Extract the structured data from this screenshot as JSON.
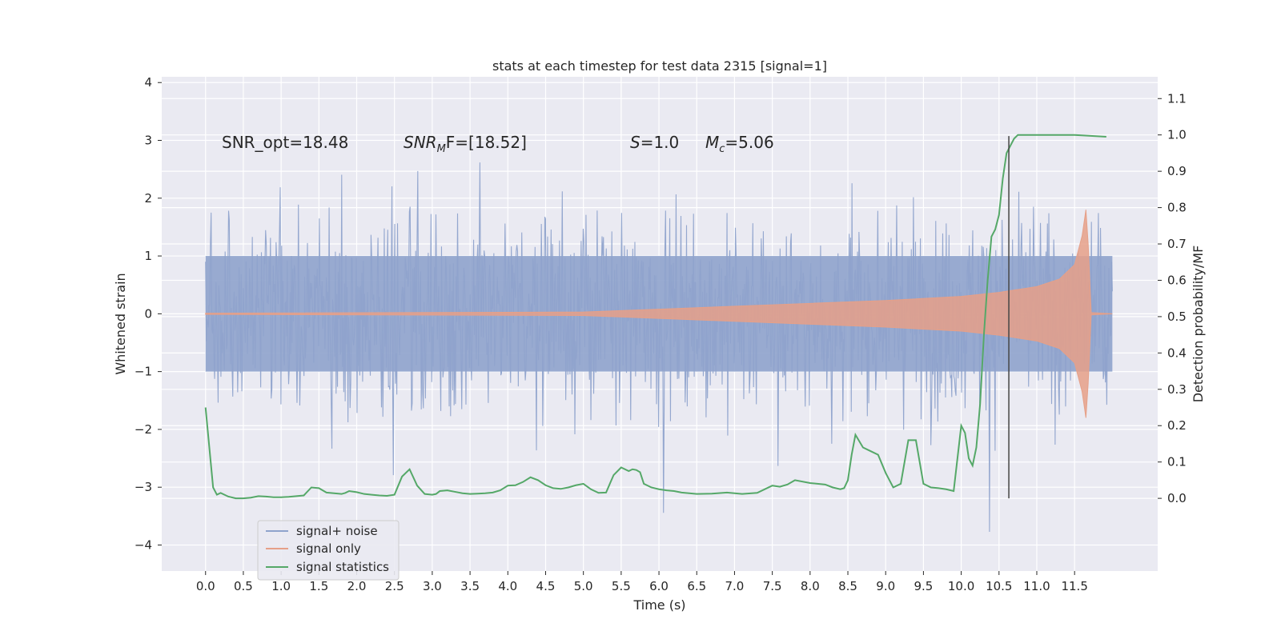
{
  "chart_data": {
    "type": "line",
    "title": "stats at each timestep for test data 2315 [signal=1]",
    "xlabel": "Time (s)",
    "ylabel": "Whitened strain",
    "y2label": "Detection probability/MF",
    "xlim": [
      -0.58,
      12.6
    ],
    "ylim": [
      -4.45,
      4.1
    ],
    "y2lim": [
      -0.2,
      1.16
    ],
    "x_ticks": [
      0.0,
      0.5,
      1.0,
      1.5,
      2.0,
      2.5,
      3.0,
      3.5,
      4.0,
      4.5,
      5.0,
      5.5,
      6.0,
      6.5,
      7.0,
      7.5,
      8.0,
      8.5,
      9.0,
      9.5,
      10.0,
      10.5,
      11.0,
      11.5
    ],
    "x_tick_labels": [
      "0.0",
      "0.5",
      "1.0",
      "1.5",
      "2.0",
      "2.5",
      "3.0",
      "3.5",
      "4.0",
      "4.5",
      "5.0",
      "5.5",
      "6.0",
      "6.5",
      "7.0",
      "7.5",
      "8.0",
      "8.5",
      "9.0",
      "9.5",
      "10.0",
      "10.5",
      "11.0",
      "11.5"
    ],
    "y_ticks": [
      4,
      3,
      2,
      1,
      0,
      -1,
      -2,
      -3,
      -4
    ],
    "y_tick_labels": [
      "4",
      "3",
      "2",
      "1",
      "0",
      "−1",
      "−2",
      "−3",
      "−4"
    ],
    "y2_ticks": [
      1.1,
      1.0,
      0.9,
      0.8,
      0.7,
      0.6,
      0.5,
      0.4,
      0.3,
      0.2,
      0.1,
      0.0
    ],
    "y2_tick_labels": [
      "1.1",
      "1.0",
      "0.9",
      "0.8",
      "0.7",
      "0.6",
      "0.5",
      "0.4",
      "0.3",
      "0.2",
      "0.1",
      "0.0"
    ],
    "grid": true,
    "legend_position": "lower-left",
    "annotations": {
      "snr_opt": "SNR_opt=18.48",
      "snr_mf_label": "SNR",
      "snr_mf_sub": "M",
      "snr_mf_rest": "F=[18.52]",
      "s_label": "S",
      "s_value": "=1.0",
      "mc_label": "M",
      "mc_sub": "c",
      "mc_value": "=5.06"
    },
    "marker_time": 10.63,
    "series": [
      {
        "name": "signal+ noise",
        "color": "#8fa3cc",
        "duration": 12.0,
        "envelope": [
          1.0,
          1.0
        ]
      },
      {
        "name": "signal only",
        "color": "#e6a088",
        "envelope_points": [
          [
            0.0,
            0.01
          ],
          [
            5.0,
            0.03
          ],
          [
            6.0,
            0.08
          ],
          [
            8.0,
            0.18
          ],
          [
            9.0,
            0.23
          ],
          [
            10.0,
            0.3
          ],
          [
            10.5,
            0.37
          ],
          [
            11.0,
            0.47
          ],
          [
            11.3,
            0.6
          ],
          [
            11.5,
            0.85
          ],
          [
            11.6,
            1.35
          ],
          [
            11.65,
            1.8
          ],
          [
            11.68,
            1.2
          ],
          [
            11.72,
            0.02
          ],
          [
            12.0,
            0.0
          ]
        ]
      },
      {
        "name": "signal statistics",
        "color": "#55a868",
        "axis": "right",
        "x": [
          0.0,
          0.05,
          0.1,
          0.15,
          0.2,
          0.3,
          0.4,
          0.5,
          0.6,
          0.7,
          0.8,
          0.9,
          1.0,
          1.1,
          1.2,
          1.3,
          1.4,
          1.5,
          1.6,
          1.7,
          1.8,
          1.85,
          1.9,
          2.0,
          2.1,
          2.2,
          2.3,
          2.4,
          2.5,
          2.6,
          2.7,
          2.8,
          2.9,
          3.0,
          3.05,
          3.1,
          3.2,
          3.3,
          3.4,
          3.5,
          3.6,
          3.7,
          3.8,
          3.9,
          4.0,
          4.1,
          4.2,
          4.3,
          4.4,
          4.5,
          4.6,
          4.7,
          4.8,
          4.9,
          5.0,
          5.1,
          5.2,
          5.3,
          5.4,
          5.5,
          5.6,
          5.65,
          5.7,
          5.75,
          5.8,
          5.9,
          6.0,
          6.1,
          6.2,
          6.3,
          6.5,
          6.7,
          6.9,
          7.1,
          7.3,
          7.5,
          7.6,
          7.7,
          7.8,
          8.0,
          8.2,
          8.3,
          8.4,
          8.45,
          8.5,
          8.55,
          8.6,
          8.7,
          8.8,
          8.9,
          9.0,
          9.1,
          9.2,
          9.3,
          9.4,
          9.5,
          9.6,
          9.7,
          9.8,
          9.9,
          10.0,
          10.05,
          10.1,
          10.15,
          10.2,
          10.25,
          10.3,
          10.35,
          10.4,
          10.45,
          10.5,
          10.55,
          10.6,
          10.65,
          10.7,
          10.75,
          10.8,
          10.9,
          11.0,
          11.5,
          11.92
        ],
        "y": [
          0.25,
          0.14,
          0.03,
          0.01,
          0.015,
          0.005,
          0.0,
          0.0,
          0.002,
          0.006,
          0.005,
          0.003,
          0.003,
          0.004,
          0.006,
          0.008,
          0.03,
          0.028,
          0.016,
          0.014,
          0.012,
          0.015,
          0.02,
          0.017,
          0.012,
          0.01,
          0.008,
          0.007,
          0.01,
          0.06,
          0.08,
          0.035,
          0.012,
          0.01,
          0.012,
          0.02,
          0.022,
          0.018,
          0.014,
          0.012,
          0.013,
          0.014,
          0.016,
          0.022,
          0.035,
          0.036,
          0.045,
          0.058,
          0.05,
          0.036,
          0.028,
          0.026,
          0.03,
          0.036,
          0.04,
          0.025,
          0.015,
          0.016,
          0.064,
          0.085,
          0.075,
          0.08,
          0.078,
          0.072,
          0.04,
          0.03,
          0.025,
          0.022,
          0.02,
          0.016,
          0.012,
          0.013,
          0.016,
          0.012,
          0.015,
          0.035,
          0.032,
          0.038,
          0.05,
          0.042,
          0.038,
          0.03,
          0.025,
          0.028,
          0.05,
          0.12,
          0.175,
          0.14,
          0.13,
          0.12,
          0.07,
          0.03,
          0.04,
          0.16,
          0.16,
          0.04,
          0.03,
          0.028,
          0.025,
          0.02,
          0.2,
          0.18,
          0.11,
          0.09,
          0.14,
          0.26,
          0.45,
          0.6,
          0.72,
          0.74,
          0.78,
          0.88,
          0.95,
          0.97,
          0.99,
          1.0,
          1.0,
          1.0,
          1.0,
          1.0,
          0.995
        ]
      }
    ]
  }
}
